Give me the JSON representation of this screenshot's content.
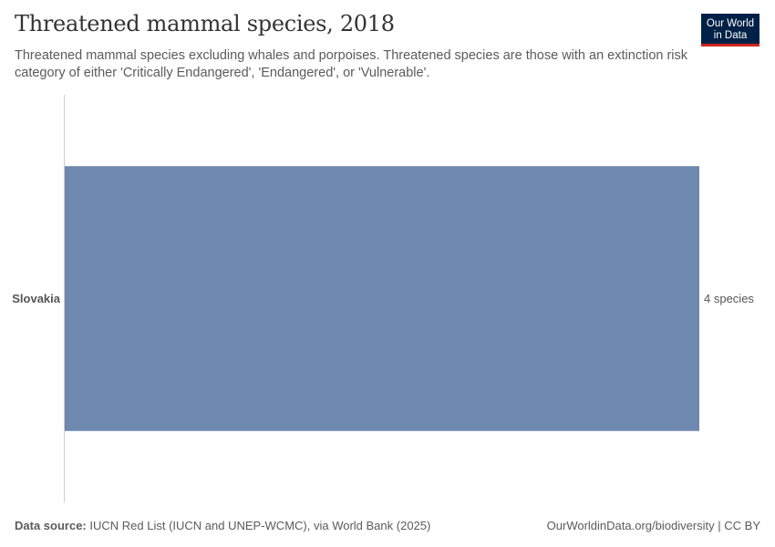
{
  "header": {
    "title": "Threatened mammal species, 2018",
    "subtitle": "Threatened mammal species excluding whales and porpoises. Threatened species are those with an extinction risk category of either 'Critically Endangered', 'Endangered', or 'Vulnerable'.",
    "logo_line1": "Our World",
    "logo_line2": "in Data"
  },
  "chart_data": {
    "type": "bar",
    "orientation": "horizontal",
    "title": "Threatened mammal species, 2018",
    "categories": [
      "Slovakia"
    ],
    "values": [
      4
    ],
    "value_labels": [
      "4 species"
    ],
    "unit": "species",
    "xlim": [
      0,
      4
    ],
    "grid": false,
    "bar_color": "#6f88b0"
  },
  "footer": {
    "source_label": "Data source:",
    "source_text": "IUCN Red List (IUCN and UNEP-WCMC), via World Bank (2025)",
    "url_text": "OurWorldinData.org/biodiversity | CC BY"
  }
}
